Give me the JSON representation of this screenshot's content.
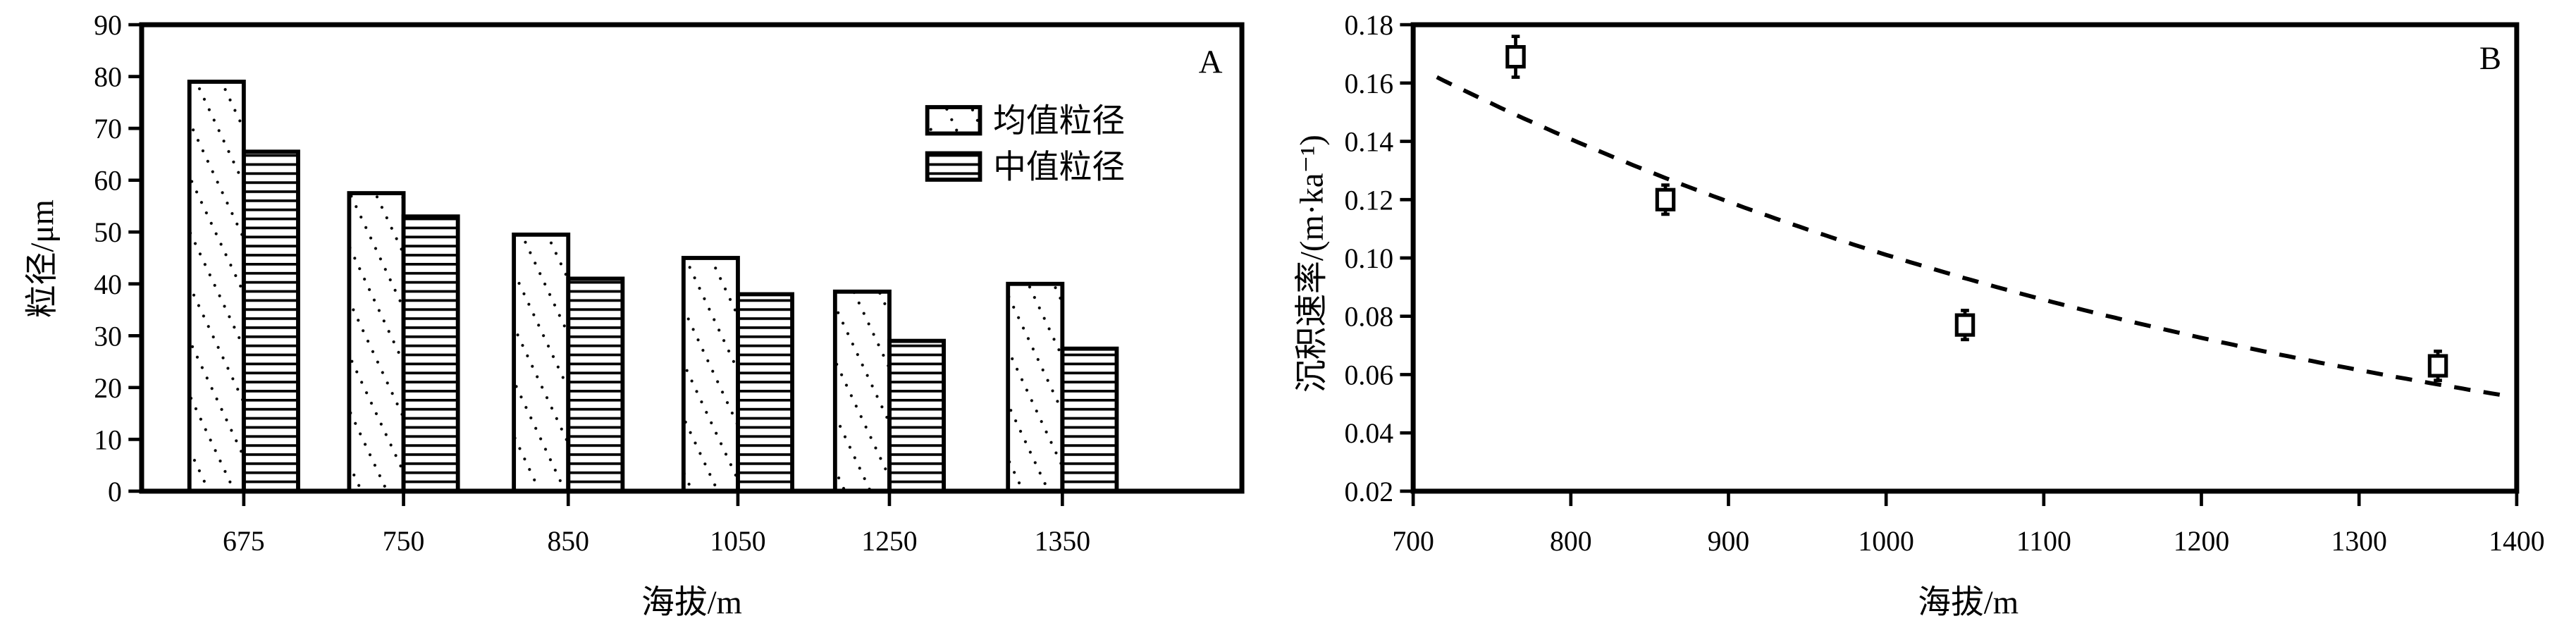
{
  "chart_data": [
    {
      "type": "bar",
      "panel_label": "A",
      "xlabel": "海拔/m",
      "ylabel": "粒径/μm",
      "categories": [
        "675",
        "750",
        "850",
        "1050",
        "1250",
        "1350"
      ],
      "series": [
        {
          "name": "均值粒径",
          "pattern": "dotted-diagonal",
          "values": [
            79,
            57.5,
            49.5,
            45,
            38.5,
            40
          ]
        },
        {
          "name": "中值粒径",
          "pattern": "horizontal-lines",
          "values": [
            65.5,
            53,
            41,
            38,
            29,
            27.5
          ]
        }
      ],
      "ylim": [
        0,
        90
      ],
      "yticks": [
        "0",
        "10",
        "20",
        "30",
        "40",
        "50",
        "60",
        "70",
        "80",
        "90"
      ],
      "legend": "top-right"
    },
    {
      "type": "scatter",
      "panel_label": "B",
      "xlabel": "海拔/m",
      "ylabel": "沉积速率/(m·ka⁻¹)",
      "points": [
        {
          "x": 765,
          "y": 0.169,
          "err": 0.007
        },
        {
          "x": 860,
          "y": 0.12,
          "err": 0.005
        },
        {
          "x": 1050,
          "y": 0.077,
          "err": 0.005
        },
        {
          "x": 1350,
          "y": 0.063,
          "err": 0.005
        }
      ],
      "fit": {
        "type": "exponential",
        "a": 0.529,
        "b": 0.001655,
        "x_range": [
          715,
          1390
        ],
        "style": "dashed"
      },
      "xlim": [
        700,
        1400
      ],
      "ylim": [
        0.02,
        0.18
      ],
      "xticks": [
        "700",
        "800",
        "900",
        "1000",
        "1100",
        "1200",
        "1300",
        "1400"
      ],
      "yticks": [
        "0.02",
        "0.04",
        "0.06",
        "0.08",
        "0.10",
        "0.12",
        "0.14",
        "0.16",
        "0.18"
      ]
    }
  ]
}
